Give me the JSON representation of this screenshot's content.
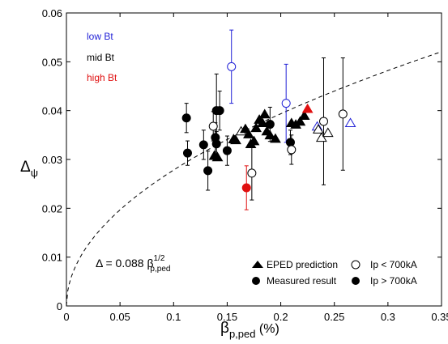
{
  "chart_data": {
    "type": "scatter",
    "xlabel": "β",
    "xlabel_sub": "p,ped",
    "xlabel_unit": " (%)",
    "ylabel": "Δ",
    "ylabel_sub": "ψ",
    "xlim": [
      0,
      0.35
    ],
    "ylim": [
      0,
      0.06
    ],
    "xticks": [
      "0",
      "0.05",
      "0.1",
      "0.15",
      "0.2",
      "0.25",
      "0.3",
      "0.35"
    ],
    "yticks": [
      "0",
      "0.01",
      "0.02",
      "0.03",
      "0.04",
      "0.05",
      "0.06"
    ],
    "grid": false,
    "group_labels": [
      {
        "text": "low Bt",
        "color": "#1f1fd6"
      },
      {
        "text": "mid Bt",
        "color": "#000000"
      },
      {
        "text": "high Bt",
        "color": "#e01010"
      }
    ],
    "colors": {
      "low": "#1f1fd6",
      "mid": "#000000",
      "high": "#e01010"
    },
    "fit": {
      "label_prefix": "Δ = 0.088 β",
      "label_sup": "1/2",
      "label_sub": "p,ped",
      "coefficient": 0.088,
      "exponent": 0.5
    },
    "legend": {
      "position": "bottom-right",
      "items": [
        {
          "text": "EPED prediction",
          "marker": "triangle-filled"
        },
        {
          "text": "Ip < 700kA",
          "marker": "circle-open"
        },
        {
          "text": "Measured result",
          "marker": "circle-filled"
        },
        {
          "text": "Ip > 700kA",
          "marker": "circle-filled"
        }
      ]
    },
    "measured": [
      {
        "x": 0.112,
        "y": 0.0385,
        "err": 0.003,
        "fill": "filled",
        "bt": "mid"
      },
      {
        "x": 0.113,
        "y": 0.0313,
        "err": 0.0025,
        "fill": "filled",
        "bt": "mid"
      },
      {
        "x": 0.128,
        "y": 0.033,
        "err": 0.003,
        "fill": "filled",
        "bt": "mid"
      },
      {
        "x": 0.132,
        "y": 0.0277,
        "err": 0.004,
        "fill": "filled",
        "bt": "mid"
      },
      {
        "x": 0.137,
        "y": 0.0368,
        "err": 0.003,
        "fill": "open",
        "bt": "mid"
      },
      {
        "x": 0.139,
        "y": 0.0345,
        "err": 0.003,
        "fill": "filled",
        "bt": "mid"
      },
      {
        "x": 0.14,
        "y": 0.04,
        "err": 0.0075,
        "fill": "filled",
        "bt": "mid"
      },
      {
        "x": 0.143,
        "y": 0.04,
        "err": 0.004,
        "fill": "filled",
        "bt": "mid"
      },
      {
        "x": 0.14,
        "y": 0.0332,
        "err": 0.0025,
        "fill": "filled",
        "bt": "mid"
      },
      {
        "x": 0.15,
        "y": 0.0318,
        "err": 0.003,
        "fill": "filled",
        "bt": "mid"
      },
      {
        "x": 0.154,
        "y": 0.049,
        "err": 0.0075,
        "fill": "open",
        "bt": "low"
      },
      {
        "x": 0.168,
        "y": 0.0242,
        "err": 0.0045,
        "fill": "filled",
        "bt": "high"
      },
      {
        "x": 0.173,
        "y": 0.0272,
        "err": 0.0055,
        "fill": "open",
        "bt": "mid"
      },
      {
        "x": 0.19,
        "y": 0.0372,
        "err": 0.0035,
        "fill": "filled",
        "bt": "mid"
      },
      {
        "x": 0.205,
        "y": 0.0415,
        "err": 0.008,
        "fill": "open",
        "bt": "low"
      },
      {
        "x": 0.209,
        "y": 0.0335,
        "err": 0.0025,
        "fill": "filled",
        "bt": "mid"
      },
      {
        "x": 0.21,
        "y": 0.032,
        "err": 0.003,
        "fill": "open",
        "bt": "mid"
      },
      {
        "x": 0.24,
        "y": 0.0378,
        "err": 0.013,
        "fill": "open",
        "bt": "mid"
      },
      {
        "x": 0.258,
        "y": 0.0393,
        "err": 0.0115,
        "fill": "open",
        "bt": "mid"
      }
    ],
    "eped": [
      {
        "x": 0.138,
        "y": 0.0308,
        "fill": "filled",
        "bt": "mid"
      },
      {
        "x": 0.141,
        "y": 0.0305,
        "fill": "filled",
        "bt": "mid"
      },
      {
        "x": 0.156,
        "y": 0.0342,
        "fill": "filled",
        "bt": "mid"
      },
      {
        "x": 0.158,
        "y": 0.034,
        "fill": "filled",
        "bt": "mid"
      },
      {
        "x": 0.163,
        "y": 0.0358,
        "fill": "open",
        "bt": "mid"
      },
      {
        "x": 0.167,
        "y": 0.0363,
        "fill": "filled",
        "bt": "mid"
      },
      {
        "x": 0.17,
        "y": 0.0352,
        "fill": "filled",
        "bt": "mid"
      },
      {
        "x": 0.172,
        "y": 0.0332,
        "fill": "filled",
        "bt": "mid"
      },
      {
        "x": 0.175,
        "y": 0.0338,
        "fill": "filled",
        "bt": "mid"
      },
      {
        "x": 0.177,
        "y": 0.0365,
        "fill": "filled",
        "bt": "mid"
      },
      {
        "x": 0.18,
        "y": 0.0382,
        "fill": "filled",
        "bt": "mid"
      },
      {
        "x": 0.183,
        "y": 0.0375,
        "fill": "filled",
        "bt": "mid"
      },
      {
        "x": 0.185,
        "y": 0.0393,
        "fill": "filled",
        "bt": "mid"
      },
      {
        "x": 0.187,
        "y": 0.0358,
        "fill": "filled",
        "bt": "mid"
      },
      {
        "x": 0.19,
        "y": 0.035,
        "fill": "filled",
        "bt": "mid"
      },
      {
        "x": 0.195,
        "y": 0.0343,
        "fill": "filled",
        "bt": "mid"
      },
      {
        "x": 0.21,
        "y": 0.0375,
        "fill": "filled",
        "bt": "mid"
      },
      {
        "x": 0.214,
        "y": 0.0372,
        "fill": "filled",
        "bt": "mid"
      },
      {
        "x": 0.218,
        "y": 0.0378,
        "fill": "filled",
        "bt": "mid"
      },
      {
        "x": 0.222,
        "y": 0.039,
        "fill": "filled",
        "bt": "mid"
      },
      {
        "x": 0.225,
        "y": 0.0404,
        "fill": "filled",
        "bt": "high"
      },
      {
        "x": 0.234,
        "y": 0.0368,
        "fill": "open",
        "bt": "low"
      },
      {
        "x": 0.235,
        "y": 0.0362,
        "fill": "open",
        "bt": "mid"
      },
      {
        "x": 0.238,
        "y": 0.0345,
        "fill": "open",
        "bt": "mid"
      },
      {
        "x": 0.244,
        "y": 0.0355,
        "fill": "open",
        "bt": "mid"
      },
      {
        "x": 0.265,
        "y": 0.0375,
        "fill": "open",
        "bt": "low"
      }
    ]
  }
}
